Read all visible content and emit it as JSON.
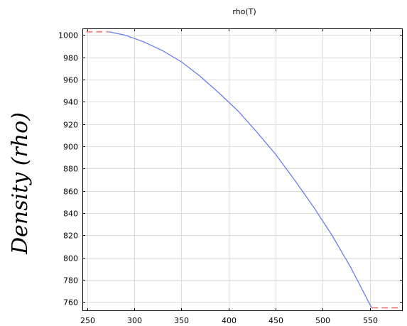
{
  "chart_data": {
    "type": "line",
    "title": "rho(T)",
    "xlabel": "",
    "ylabel": "Density (rho)",
    "xlim": [
      245,
      585
    ],
    "ylim": [
      752,
      1006
    ],
    "x_ticks": [
      250,
      300,
      350,
      400,
      450,
      500,
      550
    ],
    "y_ticks": [
      760,
      780,
      800,
      820,
      840,
      860,
      880,
      900,
      920,
      940,
      960,
      980,
      1000
    ],
    "grid": true,
    "legend": "none",
    "series": [
      {
        "style": "solid",
        "color": "#6b7bf0",
        "points": [
          [
            273,
            1003
          ],
          [
            290,
            1000
          ],
          [
            310,
            994
          ],
          [
            330,
            986
          ],
          [
            350,
            976
          ],
          [
            370,
            963
          ],
          [
            390,
            948
          ],
          [
            410,
            932
          ],
          [
            430,
            913
          ],
          [
            450,
            893
          ],
          [
            470,
            870
          ],
          [
            490,
            846
          ],
          [
            510,
            820
          ],
          [
            530,
            791
          ],
          [
            552,
            755
          ]
        ]
      },
      {
        "style": "dashed",
        "color": "#f08a8a",
        "points": [
          [
            249,
            1003
          ],
          [
            273,
            1003
          ]
        ]
      },
      {
        "style": "dashed",
        "color": "#f08a8a",
        "points": [
          [
            552,
            755
          ],
          [
            584,
            755
          ]
        ]
      }
    ]
  }
}
